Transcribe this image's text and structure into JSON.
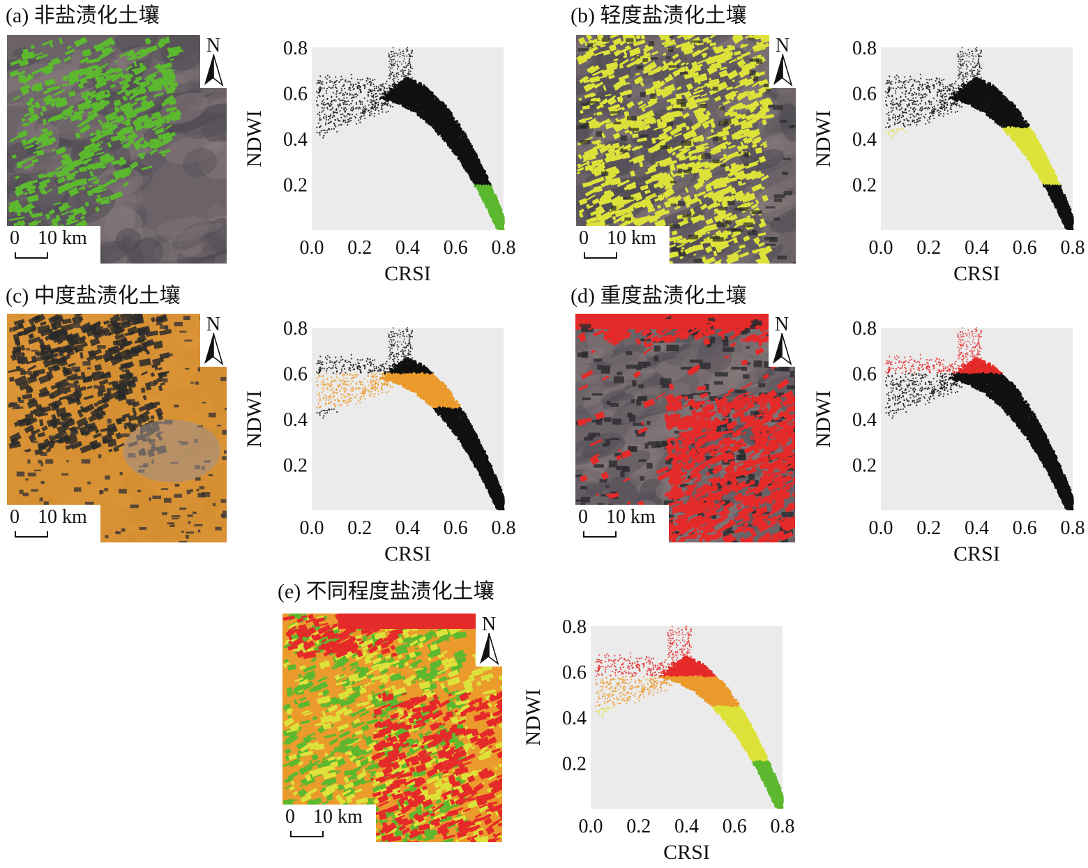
{
  "colors": {
    "non": "#5cb82e",
    "light": "#dde23a",
    "moderate": "#eb9a2c",
    "severe": "#e52a2a",
    "black": "#111111",
    "plot_bg": "#ebebeb"
  },
  "map_common": {
    "north_label": "N",
    "scale_zero": "0",
    "scale_value": "10 km"
  },
  "panels": [
    {
      "id": "a",
      "label": "(a) 非盐渍化土壤",
      "highlight": "non",
      "chart_data": {
        "type": "scatter",
        "xlabel": "CRSI",
        "ylabel": "NDWI",
        "xlim": [
          0.0,
          0.8
        ],
        "ylim": [
          0.0,
          0.8
        ],
        "xticks": [
          "0.0",
          "0.2",
          "0.4",
          "0.6",
          "0.8"
        ],
        "yticks": [
          "0.2",
          "0.4",
          "0.6",
          "0.8"
        ],
        "highlight_band": {
          "class": "non",
          "ndwi_range": [
            0.0,
            0.2
          ]
        }
      }
    },
    {
      "id": "b",
      "label": "(b) 轻度盐渍化土壤",
      "highlight": "light",
      "chart_data": {
        "type": "scatter",
        "xlabel": "CRSI",
        "ylabel": "NDWI",
        "xlim": [
          0.0,
          0.8
        ],
        "ylim": [
          0.0,
          0.8
        ],
        "xticks": [
          "0.0",
          "0.2",
          "0.4",
          "0.6",
          "0.8"
        ],
        "yticks": [
          "0.2",
          "0.4",
          "0.6",
          "0.8"
        ],
        "highlight_band": {
          "class": "light",
          "ndwi_range": [
            0.2,
            0.45
          ]
        }
      }
    },
    {
      "id": "c",
      "label": "(c) 中度盐渍化土壤",
      "highlight": "moderate",
      "chart_data": {
        "type": "scatter",
        "xlabel": "CRSI",
        "ylabel": "NDWI",
        "xlim": [
          0.0,
          0.8
        ],
        "ylim": [
          0.0,
          0.8
        ],
        "xticks": [
          "0.0",
          "0.2",
          "0.4",
          "0.6",
          "0.8"
        ],
        "yticks": [
          "0.2",
          "0.4",
          "0.6",
          "0.8"
        ],
        "highlight_band": {
          "class": "moderate",
          "ndwi_range": [
            0.45,
            0.6
          ]
        }
      }
    },
    {
      "id": "d",
      "label": "(d) 重度盐渍化土壤",
      "highlight": "severe",
      "chart_data": {
        "type": "scatter",
        "xlabel": "CRSI",
        "ylabel": "NDWI",
        "xlim": [
          0.0,
          0.8
        ],
        "ylim": [
          0.0,
          0.8
        ],
        "xticks": [
          "0.0",
          "0.2",
          "0.4",
          "0.6",
          "0.8"
        ],
        "yticks": [
          "0.2",
          "0.4",
          "0.6",
          "0.8"
        ],
        "highlight_band": {
          "class": "severe",
          "ndwi_range": [
            0.6,
            0.8
          ]
        }
      }
    },
    {
      "id": "e",
      "label": "(e) 不同程度盐渍化土壤",
      "highlight": "all",
      "chart_data": {
        "type": "scatter",
        "xlabel": "CRSI",
        "ylabel": "NDWI",
        "xlim": [
          0.0,
          0.8
        ],
        "ylim": [
          0.0,
          0.8
        ],
        "xticks": [
          "0.0",
          "0.2",
          "0.4",
          "0.6",
          "0.8"
        ],
        "yticks": [
          "0.2",
          "0.4",
          "0.6",
          "0.8"
        ],
        "highlight_band": {
          "class": "all",
          "ndwi_range": [
            0.0,
            0.8
          ]
        }
      }
    }
  ]
}
